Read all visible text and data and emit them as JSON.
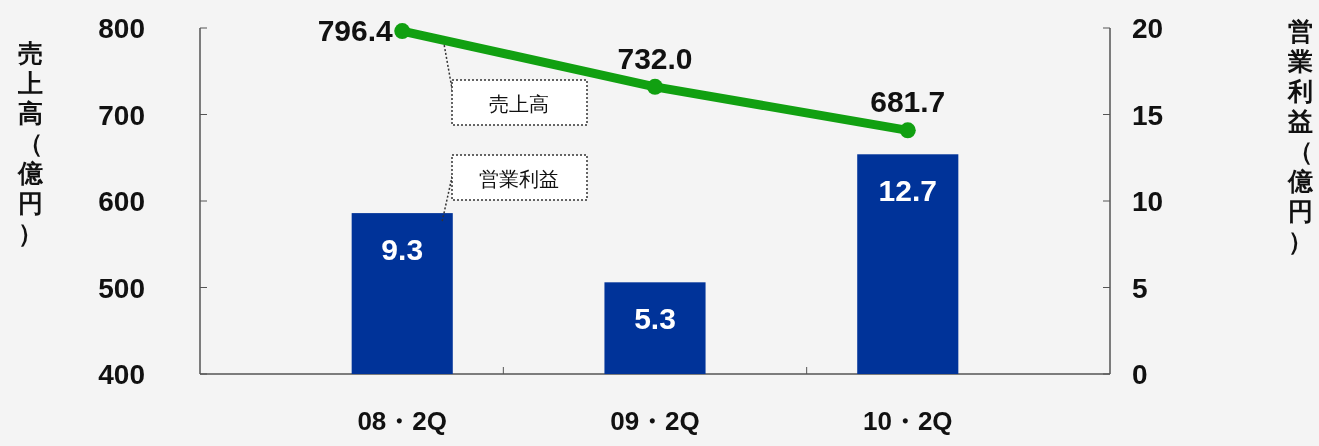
{
  "chart_data": {
    "type": "bar",
    "categories": [
      "08・2Q",
      "09・2Q",
      "10・2Q"
    ],
    "series": [
      {
        "name": "営業利益",
        "axis": "y2",
        "color": "#003399",
        "values": [
          9.3,
          5.3,
          12.7
        ],
        "value_labels": [
          "9.3",
          "5.3",
          "12.7"
        ]
      },
      {
        "name": "売上高",
        "type": "line",
        "axis": "y",
        "color": "#11a011",
        "marker": "circle",
        "values": [
          796.4,
          732.0,
          681.7
        ],
        "value_labels": [
          "796.4",
          "732.0",
          "681.7"
        ]
      }
    ],
    "ylabel": "売上高（億円）",
    "y2label": "営業利益（億円）",
    "ylim": [
      400,
      800
    ],
    "yticks": [
      400,
      500,
      600,
      700,
      800
    ],
    "y2lim": [
      0,
      20
    ],
    "y2ticks": [
      0,
      5,
      10,
      15,
      20
    ]
  }
}
